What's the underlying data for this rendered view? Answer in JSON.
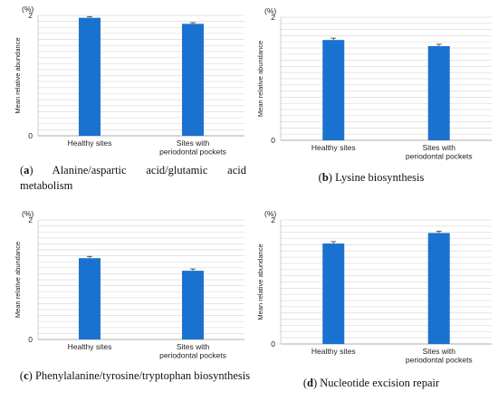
{
  "chart_data": [
    {
      "panel": "a",
      "type": "bar",
      "unit": "(%)",
      "ylabel": "Mean relative abundance",
      "ylim": [
        0,
        2
      ],
      "yticks": [
        "0",
        "2"
      ],
      "categories": [
        "Healthy sites",
        "Sites with periodontal pockets"
      ],
      "values": [
        1.96,
        1.86
      ],
      "errors": [
        0.02,
        0.02
      ],
      "caption_label": "a",
      "caption_text": "Alanine/aspartic acid/glutamic acid metabolism",
      "bar_color": "#1a72d0"
    },
    {
      "panel": "b",
      "type": "bar",
      "unit": "(%)",
      "ylabel": "Mean relative abundance",
      "ylim": [
        0,
        2
      ],
      "yticks": [
        "0",
        "2"
      ],
      "categories": [
        "Healthy sites",
        "Sites with periodontal pockets"
      ],
      "values": [
        1.63,
        1.53
      ],
      "errors": [
        0.03,
        0.03
      ],
      "caption_label": "b",
      "caption_text": "Lysine biosynthesis",
      "bar_color": "#1a72d0"
    },
    {
      "panel": "c",
      "type": "bar",
      "unit": "(%)",
      "ylabel": "Mean relative abundance",
      "ylim": [
        0,
        2
      ],
      "yticks": [
        "0",
        "2"
      ],
      "categories": [
        "Healthy sites",
        "Sites with periodontal pockets"
      ],
      "values": [
        1.36,
        1.15
      ],
      "errors": [
        0.03,
        0.03
      ],
      "caption_label": "c",
      "caption_text": "Phenylalanine/tyrosine/tryptophan biosynthesis",
      "bar_color": "#1a72d0"
    },
    {
      "panel": "d",
      "type": "bar",
      "unit": "(%)",
      "ylabel": "Mean relative abundance",
      "ylim": [
        0,
        2
      ],
      "yticks": [
        "0",
        "2"
      ],
      "categories": [
        "Healthy sites",
        "Sites with periodontal pockets"
      ],
      "values": [
        1.62,
        1.79
      ],
      "errors": [
        0.03,
        0.03
      ],
      "caption_label": "d",
      "caption_text": "Nucleotide excision repair",
      "bar_color": "#1a72d0"
    }
  ]
}
